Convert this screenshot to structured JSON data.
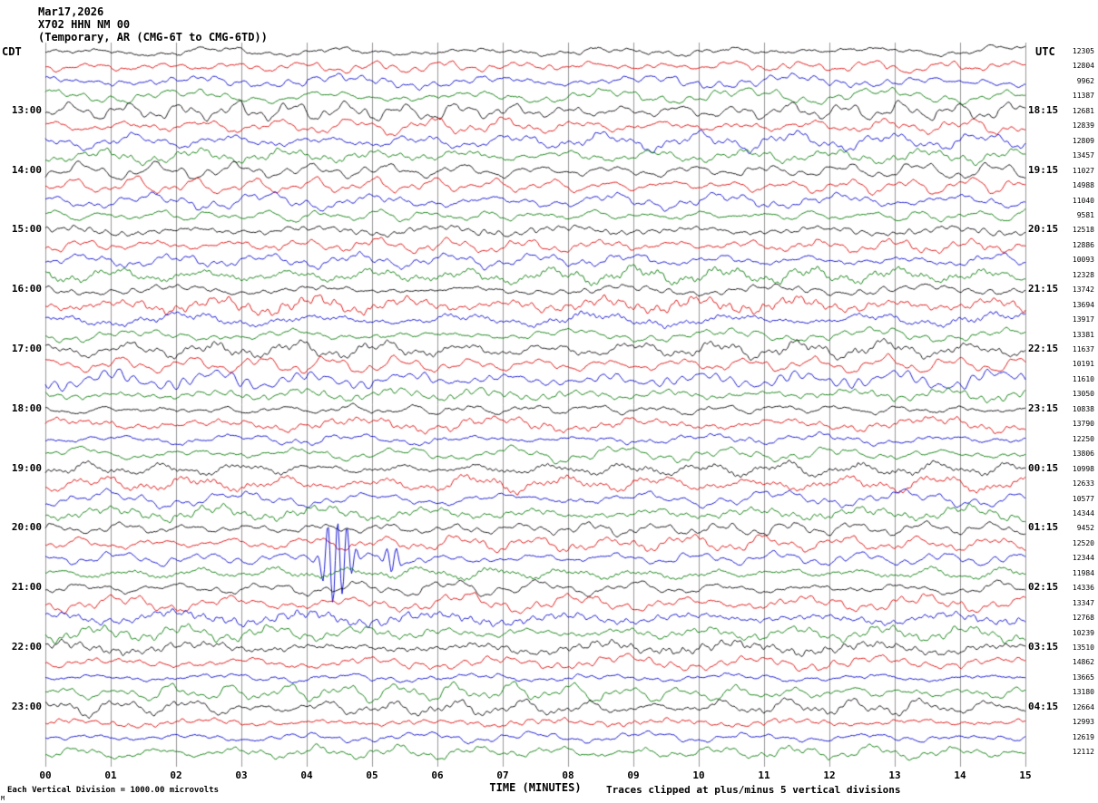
{
  "title": {
    "line1": "Mar17,2026",
    "line2": "X702 HHN NM 00",
    "line3": "(Temporary, AR (CMG-6T to CMG-6TD))"
  },
  "axes": {
    "left_header": "CDT",
    "right_header": "UTC",
    "x_title": "TIME (MINUTES)",
    "x_ticks": [
      "00",
      "01",
      "02",
      "03",
      "04",
      "05",
      "06",
      "07",
      "08",
      "09",
      "10",
      "11",
      "12",
      "13",
      "14",
      "15"
    ]
  },
  "footer": {
    "left": "Each Vertical Division = 1000.00 microvolts",
    "right": "Traces clipped at plus/minus 5 vertical divisions",
    "corner_mark": "M"
  },
  "chart_data": {
    "type": "line",
    "subtype": "helicorder-seismogram",
    "title": "X702 HHN NM 00 (Temporary, AR (CMG-6T to CMG-6TD)) Mar17,2026",
    "xlabel": "TIME (MINUTES)",
    "x_range_minutes": [
      0,
      15
    ],
    "row_duration_minutes": 15,
    "rows": 48,
    "first_row_cdt": "12:00",
    "timezone_offset_note": "CDT left labels, UTC right labels (UTC = CDT + 5h15m at row end)",
    "grid": "vertical gridline every 1 minute",
    "trace_colors_cycle": [
      "#000000",
      "#dd0000",
      "#0000cc",
      "#007700"
    ],
    "gridline_color": "#999999",
    "left_time_labels": [
      {
        "row": 4,
        "label": "13:00"
      },
      {
        "row": 8,
        "label": "14:00"
      },
      {
        "row": 12,
        "label": "15:00"
      },
      {
        "row": 16,
        "label": "16:00"
      },
      {
        "row": 20,
        "label": "17:00"
      },
      {
        "row": 24,
        "label": "18:00"
      },
      {
        "row": 28,
        "label": "19:00"
      },
      {
        "row": 32,
        "label": "20:00"
      },
      {
        "row": 36,
        "label": "21:00"
      },
      {
        "row": 40,
        "label": "22:00"
      },
      {
        "row": 44,
        "label": "23:00"
      }
    ],
    "right_time_labels": [
      {
        "row": 4,
        "label": "18:15"
      },
      {
        "row": 8,
        "label": "19:15"
      },
      {
        "row": 12,
        "label": "20:15"
      },
      {
        "row": 16,
        "label": "21:15"
      },
      {
        "row": 20,
        "label": "22:15"
      },
      {
        "row": 24,
        "label": "23:15"
      },
      {
        "row": 28,
        "label": "00:15"
      },
      {
        "row": 32,
        "label": "01:15"
      },
      {
        "row": 36,
        "label": "02:15"
      },
      {
        "row": 40,
        "label": "03:15"
      },
      {
        "row": 44,
        "label": "04:15"
      }
    ],
    "row_peak_values": [
      12305,
      12804,
      9962,
      11387,
      12681,
      12839,
      12809,
      13457,
      11027,
      14988,
      11040,
      9581,
      12518,
      12886,
      10093,
      12328,
      13742,
      13694,
      13917,
      13381,
      11637,
      10191,
      11610,
      13050,
      10838,
      13790,
      12250,
      13806,
      10998,
      12633,
      10577,
      14344,
      9452,
      12520,
      12344,
      11984,
      14336,
      13347,
      12768,
      10239,
      13510,
      14862,
      13665,
      13180,
      12664,
      12993,
      12619,
      12112
    ],
    "event": {
      "row": 34,
      "color": "blue",
      "minutes": [
        4.4,
        5.3
      ],
      "description": "large clipped transient spikes on blue trace around 20:30 CDT"
    },
    "clip_note": "Traces clipped at plus/minus 5 vertical divisions",
    "scale_note": "Each Vertical Division = 1000.00 microvolts"
  }
}
